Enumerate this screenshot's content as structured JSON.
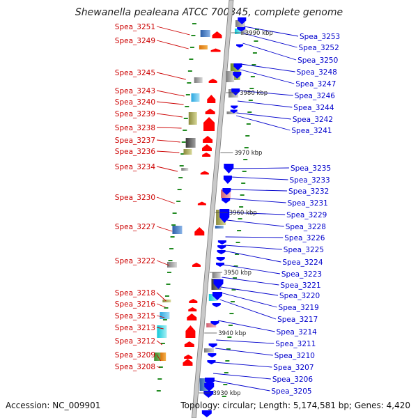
{
  "title": "Shewanella pealeana ATCC 700345, complete genome",
  "footer": {
    "accession": "Accession: NC_009901",
    "topology": "Topology: circular; Length: 5,174,581 bp; Genes: 4,420"
  },
  "colors": {
    "forward_gene": "#ff0000",
    "reverse_gene": "#0000ff",
    "forward_label": "#cc0000",
    "reverse_label": "#0000cc",
    "backbone": "#9e9e9e",
    "tick": "#228b22"
  },
  "scale_labels": [
    "3990 kbp",
    "3980 kbp",
    "3970 kbp",
    "3960 kbp",
    "3950 kbp",
    "3940 kbp",
    "3930 kbp"
  ],
  "left_genes": [
    "Spea_3251",
    "Spea_3249",
    "Spea_3245",
    "Spea_3243",
    "Spea_3240",
    "Spea_3239",
    "Spea_3238",
    "Spea_3237",
    "Spea_3236",
    "Spea_3234",
    "Spea_3230",
    "Spea_3227",
    "Spea_3222",
    "Spea_3218",
    "Spea_3216",
    "Spea_3215",
    "Spea_3213",
    "Spea_3212",
    "Spea_3209",
    "Spea_3208"
  ],
  "right_genes": [
    "Spea_3253",
    "Spea_3252",
    "Spea_3250",
    "Spea_3248",
    "Spea_3247",
    "Spea_3246",
    "Spea_3244",
    "Spea_3242",
    "Spea_3241",
    "Spea_3235",
    "Spea_3233",
    "Spea_3232",
    "Spea_3231",
    "Spea_3229",
    "Spea_3228",
    "Spea_3226",
    "Spea_3225",
    "Spea_3224",
    "Spea_3223",
    "Spea_3221",
    "Spea_3220",
    "Spea_3219",
    "Spea_3217",
    "Spea_3214",
    "Spea_3211",
    "Spea_3210",
    "Spea_3207",
    "Spea_3206",
    "Spea_3205"
  ]
}
